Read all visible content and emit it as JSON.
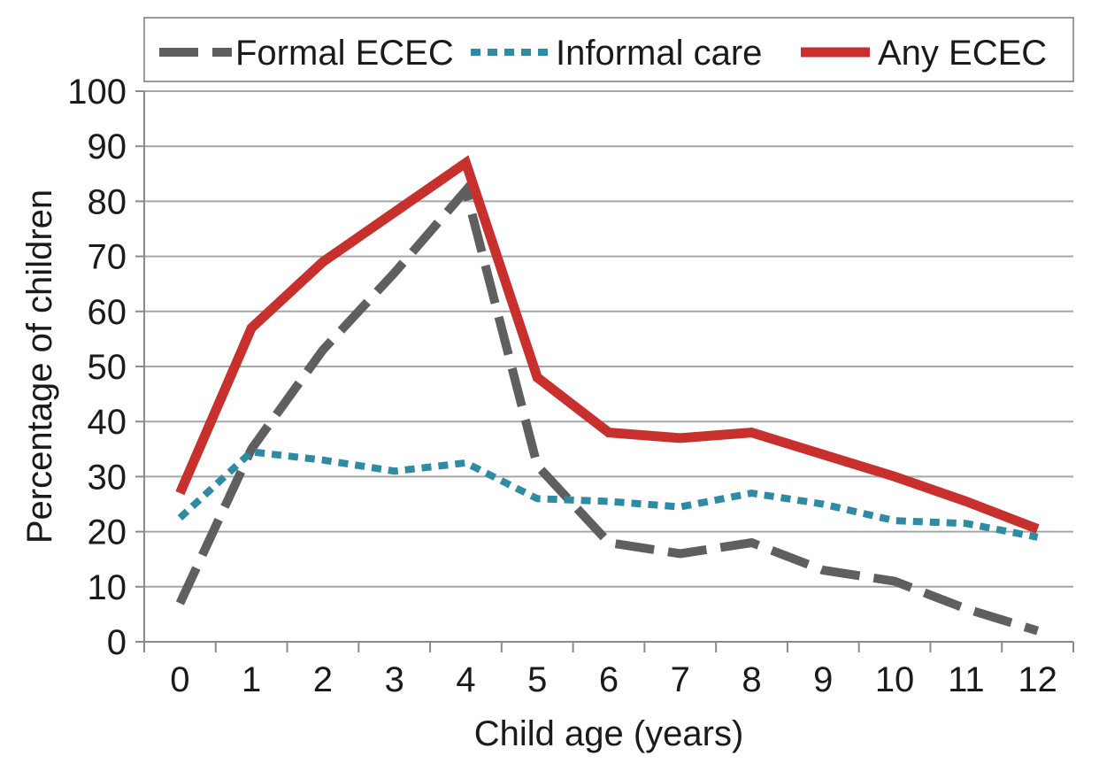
{
  "chart_data": {
    "type": "line",
    "x": [
      0,
      1,
      2,
      3,
      4,
      5,
      6,
      7,
      8,
      9,
      10,
      11,
      12
    ],
    "xlabel": "Child age (years)",
    "ylabel": "Percentage of children",
    "ylim": [
      0,
      100
    ],
    "yticks": [
      0,
      10,
      20,
      30,
      40,
      50,
      60,
      70,
      80,
      90,
      100
    ],
    "grid": "horizontal",
    "legend_position": "top",
    "series": [
      {
        "name": "Formal ECEC",
        "color": "#5f5f62",
        "style": "dashed",
        "values": [
          7,
          35,
          53,
          67,
          82,
          32,
          18,
          16,
          18,
          13,
          11,
          6,
          2
        ]
      },
      {
        "name": "Informal care",
        "color": "#2e8ba3",
        "style": "dotted",
        "values": [
          22.5,
          34.5,
          33,
          31,
          32.5,
          26,
          25.5,
          24.5,
          27,
          25,
          22,
          21.5,
          19
        ]
      },
      {
        "name": "Any ECEC",
        "color": "#c8302d",
        "style": "solid",
        "values": [
          27,
          57,
          69,
          78,
          87,
          48,
          38,
          37,
          38,
          34,
          30,
          25.5,
          20.5
        ]
      }
    ]
  }
}
